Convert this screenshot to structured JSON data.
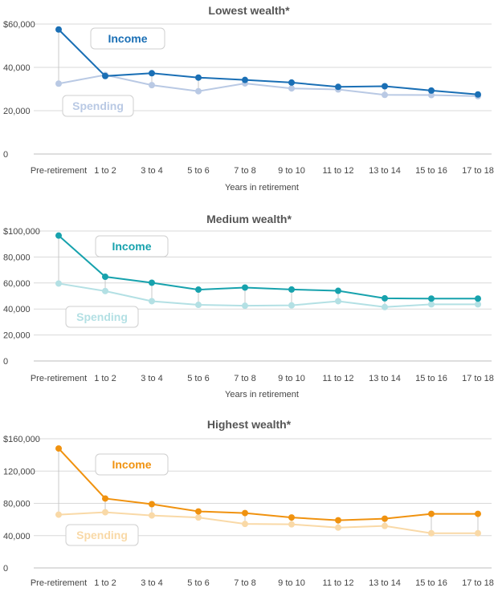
{
  "chart_data": [
    {
      "type": "line",
      "title": "Lowest wealth*",
      "xlabel": "Years in retirement",
      "ylabel": "",
      "categories": [
        "Pre-retirement",
        "1 to 2",
        "3 to 4",
        "5 to 6",
        "7 to 8",
        "9 to 10",
        "11 to 12",
        "13 to 14",
        "15 to 16",
        "17 to 18"
      ],
      "y_ticks": [
        "$60,000",
        "40,000",
        "20,000",
        "0"
      ],
      "y_tick_values": [
        60000,
        40000,
        20000,
        0
      ],
      "ylim": [
        0,
        60000
      ],
      "grid": true,
      "series": [
        {
          "name": "Income",
          "color": "#1a6fb5",
          "values": [
            57500,
            36000,
            37300,
            35300,
            34200,
            33000,
            31000,
            31300,
            29300,
            27500
          ]
        },
        {
          "name": "Spending",
          "color": "#b9c9e4",
          "values": [
            32500,
            36500,
            31800,
            29000,
            32600,
            30300,
            29800,
            27300,
            27200,
            26700
          ]
        }
      ]
    },
    {
      "type": "line",
      "title": "Medium wealth*",
      "xlabel": "Years in retirement",
      "ylabel": "",
      "categories": [
        "Pre-retirement",
        "1 to 2",
        "3 to 4",
        "5 to 6",
        "7 to 8",
        "9 to 10",
        "11 to 12",
        "13 to 14",
        "15 to 16",
        "17 to 18"
      ],
      "y_ticks": [
        "$100,000",
        "80,000",
        "60,000",
        "40,000",
        "20,000",
        "0"
      ],
      "y_tick_values": [
        100000,
        80000,
        60000,
        40000,
        20000,
        0
      ],
      "ylim": [
        0,
        100000
      ],
      "grid": true,
      "series": [
        {
          "name": "Income",
          "color": "#17a2ad",
          "values": [
            96500,
            64800,
            60200,
            54900,
            56500,
            55000,
            54000,
            48200,
            48000,
            48000
          ]
        },
        {
          "name": "Spending",
          "color": "#b3e0e4",
          "values": [
            59600,
            53800,
            46000,
            43200,
            42500,
            42800,
            46000,
            41500,
            43600,
            43600
          ]
        }
      ]
    },
    {
      "type": "line",
      "title": "Highest wealth*",
      "xlabel": "",
      "ylabel": "",
      "categories": [
        "Pre-retirement",
        "1 to 2",
        "3 to 4",
        "5 to 6",
        "7 to 8",
        "9 to 10",
        "11 to 12",
        "13 to 14",
        "15 to 16",
        "17 to 18"
      ],
      "y_ticks": [
        "$160,000",
        "120,000",
        "80,000",
        "40,000",
        "0"
      ],
      "y_tick_values": [
        160000,
        120000,
        80000,
        40000,
        0
      ],
      "ylim": [
        0,
        160000
      ],
      "grid": true,
      "series": [
        {
          "name": "Income",
          "color": "#f0920f",
          "values": [
            148000,
            86000,
            79000,
            70000,
            68000,
            62500,
            59000,
            61000,
            67000,
            67000
          ]
        },
        {
          "name": "Spending",
          "color": "#f9d9a7",
          "values": [
            66000,
            69000,
            65000,
            62500,
            54500,
            54000,
            50000,
            52000,
            43000,
            43000
          ]
        }
      ]
    }
  ]
}
